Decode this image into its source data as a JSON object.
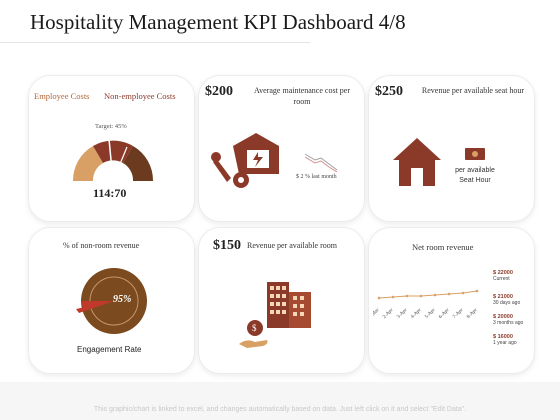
{
  "header": {
    "title": "Hospitality Management KPI Dashboard 4/8"
  },
  "card1": {
    "legend_a": "Employee Costs",
    "legend_b": "Non-employee Costs",
    "target": "Target: 45%",
    "reading": "114:70"
  },
  "card2": {
    "amount": "$200",
    "label": "Average maintenance cost per room",
    "delta": "$ 2 % last month"
  },
  "card3": {
    "amount": "$250",
    "label": "Revenue per available seat hour",
    "sub": "per available Seat Hour"
  },
  "card4": {
    "label": "% of non-room revenue",
    "percent": "95%",
    "caption": "Engagement Rate"
  },
  "card5": {
    "amount": "$150",
    "label": "Revenue per available room"
  },
  "card6": {
    "label": "Net room revenue",
    "stats": [
      {
        "value": "$ 22000",
        "caption": "Current"
      },
      {
        "value": "$ 21000",
        "caption": "30 days ago"
      },
      {
        "value": "$ 20000",
        "caption": "3 months ago"
      },
      {
        "value": "$ 16000",
        "caption": "1 year ago"
      }
    ],
    "dates": [
      "1-Mar",
      "2-Apr",
      "3-Apr",
      "4-Apr",
      "5-Apr",
      "6-Apr",
      "7-Apr",
      "8-Apr"
    ]
  },
  "footer": {
    "note": "This graphic/chart is linked to excel, and changes automatically based on data. Just left click on it and select \"Edit Data\"."
  },
  "colors": {
    "brown": "#8b3a2a",
    "tan": "#d9a066",
    "dark": "#5e3526",
    "accent": "#c0392b"
  }
}
